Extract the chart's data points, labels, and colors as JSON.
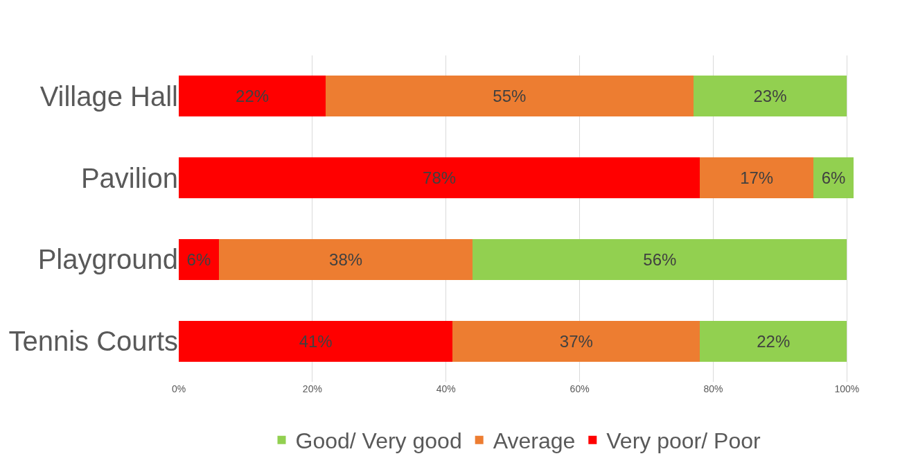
{
  "chart_data": {
    "type": "bar",
    "orientation": "horizontal",
    "stacked": true,
    "categories": [
      "Village Hall",
      "Pavilion",
      "Playground",
      "Tennis Courts"
    ],
    "series": [
      {
        "name": "Very poor/ Poor",
        "color": "#ff0000",
        "values": [
          22,
          78,
          6,
          41
        ],
        "value_labels": [
          "22%",
          "78%",
          "6%",
          "41%"
        ]
      },
      {
        "name": "Average",
        "color": "#ed7d31",
        "values": [
          55,
          17,
          38,
          37
        ],
        "value_labels": [
          "55%",
          "17%",
          "38%",
          "37%"
        ]
      },
      {
        "name": "Good/ Very good",
        "color": "#92d050",
        "values": [
          23,
          6,
          56,
          22
        ],
        "value_labels": [
          "23%",
          "6%",
          "56%",
          "22%"
        ]
      }
    ],
    "xlim": [
      0,
      101
    ],
    "xticks": [
      {
        "value": 0,
        "label": "0%"
      },
      {
        "value": 20,
        "label": "20%"
      },
      {
        "value": 40,
        "label": "40%"
      },
      {
        "value": 60,
        "label": "60%"
      },
      {
        "value": 80,
        "label": "80%"
      },
      {
        "value": 100,
        "label": "100%"
      }
    ],
    "grid": "x",
    "legend": "bottom"
  }
}
